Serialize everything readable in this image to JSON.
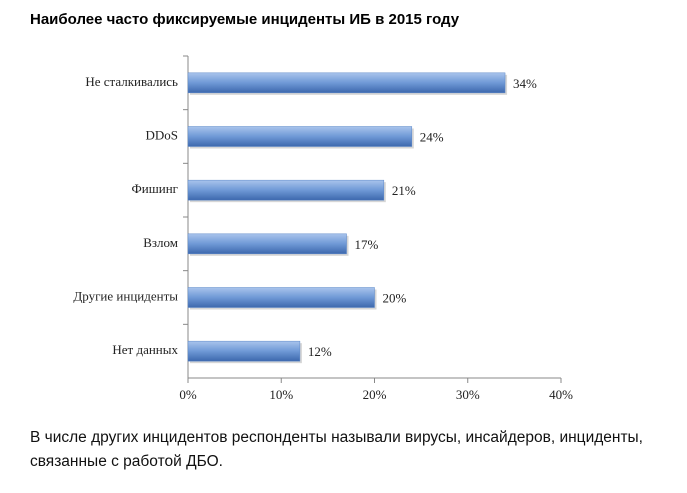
{
  "chart_data": {
    "type": "bar",
    "orientation": "horizontal",
    "title": "Наиболее часто фиксируемые инциденты ИБ в 2015 году",
    "categories": [
      "Не сталкивались",
      "DDoS",
      "Фишинг",
      "Взлом",
      "Другие инциденты",
      "Нет данных"
    ],
    "values": [
      34,
      24,
      21,
      17,
      20,
      12
    ],
    "value_labels": [
      "34%",
      "24%",
      "21%",
      "17%",
      "20%",
      "12%"
    ],
    "color": "#5b87c8",
    "xlim": [
      0,
      40
    ],
    "xticks": [
      {
        "value": 0,
        "label": "0%"
      },
      {
        "value": 10,
        "label": "10%"
      },
      {
        "value": 20,
        "label": "20%"
      },
      {
        "value": 30,
        "label": "30%"
      },
      {
        "value": 40,
        "label": "40%"
      }
    ],
    "caption": "В числе других инцидентов респонденты называли вирусы, инсайдеров, инциденты, связанные с работой ДБО."
  }
}
